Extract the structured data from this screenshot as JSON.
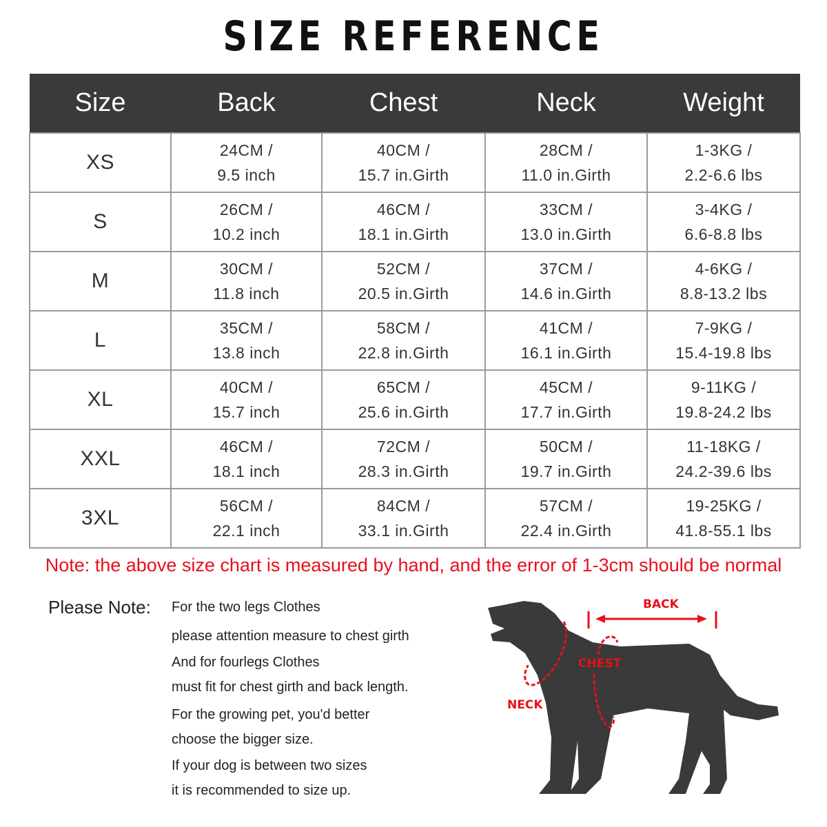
{
  "title": "SIZE REFERENCE",
  "table": {
    "headers": [
      "Size",
      "Back",
      "Chest",
      "Neck",
      "Weight"
    ],
    "rows": [
      [
        "XS",
        "24CM /",
        "9.5 inch",
        "40CM /",
        "15.7 in.Girth",
        "28CM /",
        "11.0 in.Girth",
        "1-3KG /",
        "2.2-6.6 lbs"
      ],
      [
        "S",
        "26CM /",
        "10.2 inch",
        "46CM /",
        "18.1 in.Girth",
        "33CM /",
        "13.0 in.Girth",
        "3-4KG /",
        "6.6-8.8 lbs"
      ],
      [
        "M",
        "30CM /",
        "11.8 inch",
        "52CM /",
        "20.5 in.Girth",
        "37CM /",
        "14.6 in.Girth",
        "4-6KG /",
        "8.8-13.2 lbs"
      ],
      [
        "L",
        "35CM /",
        "13.8 inch",
        "58CM /",
        "22.8 in.Girth",
        "41CM /",
        "16.1 in.Girth",
        "7-9KG /",
        "15.4-19.8 lbs"
      ],
      [
        "XL",
        "40CM /",
        "15.7 inch",
        "65CM /",
        "25.6 in.Girth",
        "45CM /",
        "17.7 in.Girth",
        "9-11KG /",
        "19.8-24.2 lbs"
      ],
      [
        "XXL",
        "46CM /",
        "18.1 inch",
        "72CM /",
        "28.3 in.Girth",
        "50CM /",
        "19.7 in.Girth",
        "11-18KG /",
        "24.2-39.6 lbs"
      ],
      [
        "3XL",
        "56CM /",
        "22.1 inch",
        "84CM /",
        "33.1 in.Girth",
        "57CM /",
        "22.4 in.Girth",
        "19-25KG /",
        "41.8-55.1 lbs"
      ]
    ]
  },
  "note": "Note: the above size chart is measured by hand, and the error of 1-3cm should be normal",
  "please_note": "Please Note:",
  "tips": [
    "For the two legs Clothes",
    "please attention measure to chest girth",
    "And for fourlegs Clothes",
    "must fit for chest girth and back length.",
    "For the growing pet, you'd better",
    "choose the bigger size.",
    "If your dog is between two sizes",
    "it is recommended to size up."
  ],
  "diagram": {
    "back": "BACK",
    "chest": "CHEST",
    "neck": "NECK",
    "accent": "#e8101a",
    "silhouette": "#3a3a3a"
  }
}
